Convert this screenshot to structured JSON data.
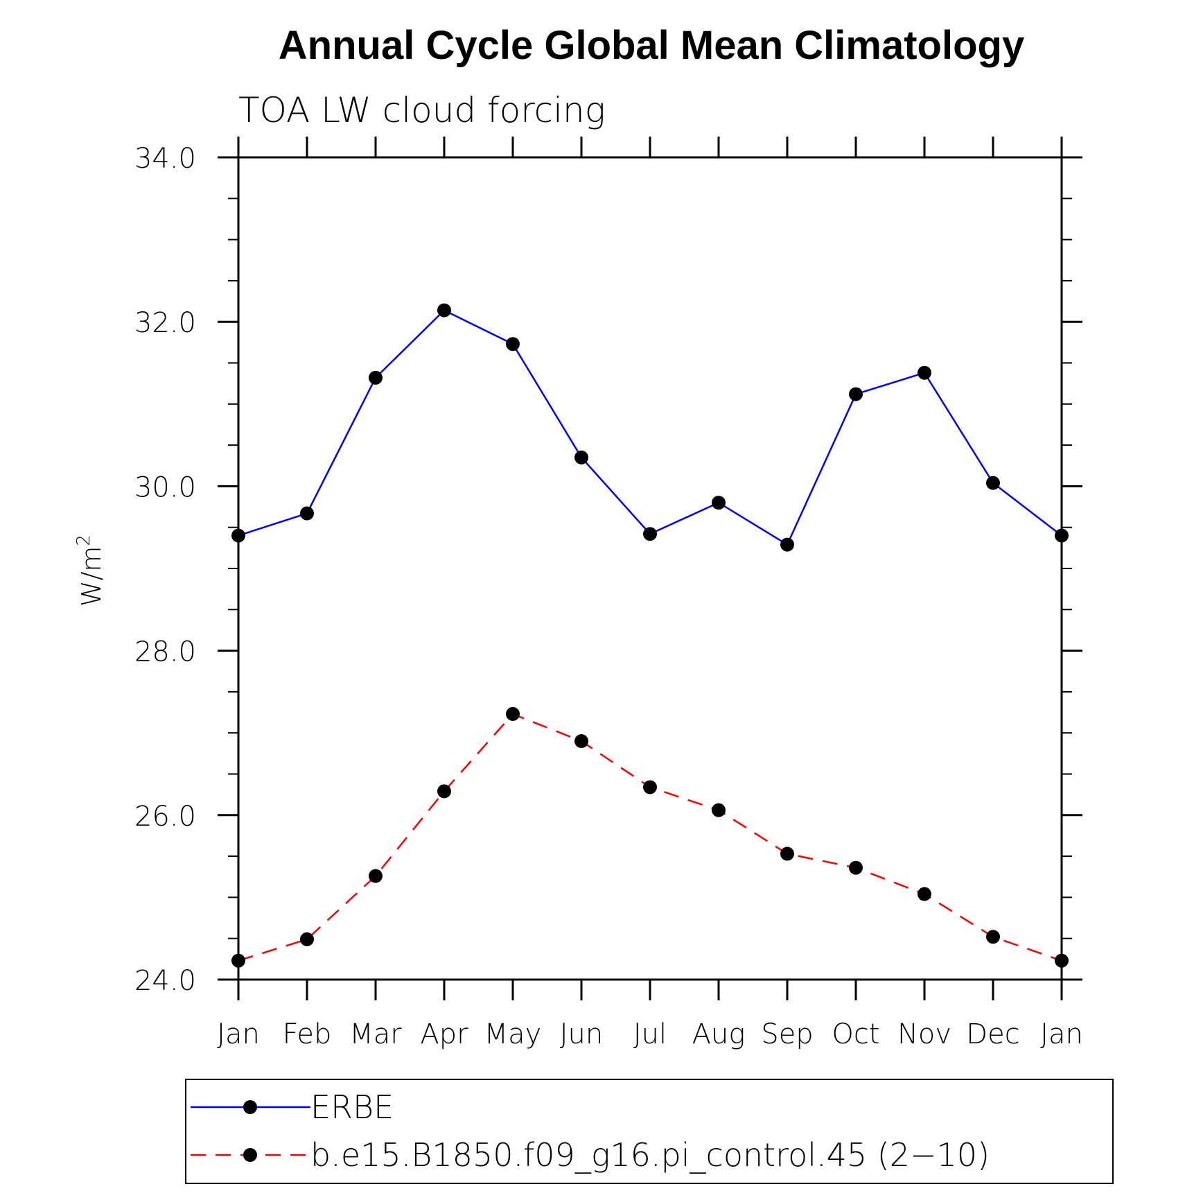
{
  "chart_data": {
    "type": "line",
    "title": "Annual Cycle Global Mean Climatology",
    "subtitle": "TOA LW cloud forcing",
    "ylabel_base": "W/m",
    "ylabel_sup": "2",
    "xlabel": "",
    "categories": [
      "Jan",
      "Feb",
      "Mar",
      "Apr",
      "May",
      "Jun",
      "Jul",
      "Aug",
      "Sep",
      "Oct",
      "Nov",
      "Dec",
      "Jan"
    ],
    "ylim": [
      24.0,
      34.0
    ],
    "yticks": [
      "24.0",
      "26.0",
      "28.0",
      "30.0",
      "32.0",
      "34.0"
    ],
    "yticks_values": [
      24,
      26,
      28,
      30,
      32,
      34
    ],
    "minor_tick_step": 0.5,
    "grid": false,
    "legend_position": "bottom",
    "series": [
      {
        "name": "ERBE",
        "color": "#0000ff",
        "dash": "solid",
        "values": [
          29.4,
          29.67,
          31.32,
          32.14,
          31.73,
          30.35,
          29.42,
          29.8,
          29.29,
          31.12,
          31.38,
          30.04,
          29.4
        ]
      },
      {
        "name": "b.e15.B1850.f09_g16.pi_control.45 (2−10)",
        "color": "#ff0000",
        "dash": "dashed",
        "values": [
          24.23,
          24.49,
          25.26,
          26.29,
          27.23,
          26.9,
          26.34,
          26.06,
          25.53,
          25.36,
          25.04,
          24.52,
          24.23
        ]
      }
    ]
  }
}
